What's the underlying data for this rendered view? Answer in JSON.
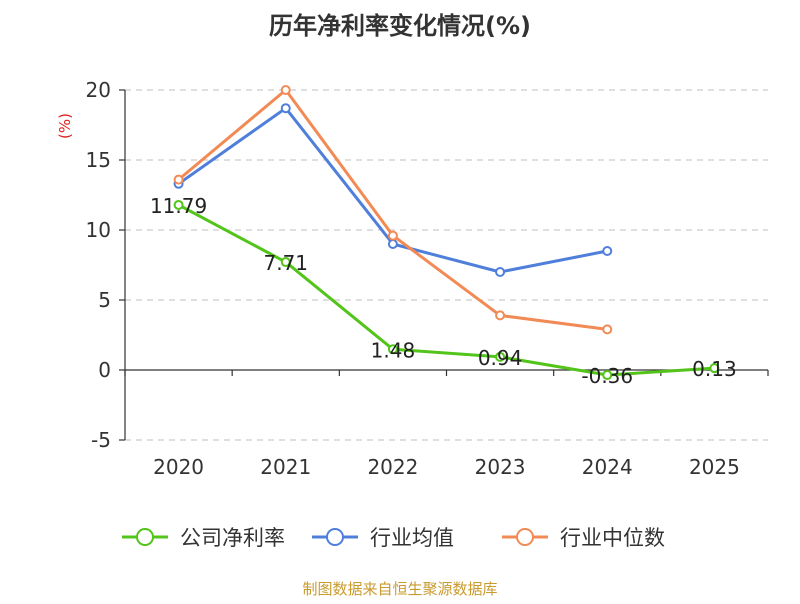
{
  "chart_data": {
    "type": "line",
    "title": "历年净利率变化情况(%)",
    "ylabel": "(%)",
    "xlabel": "",
    "categories": [
      "2020",
      "2021",
      "2022",
      "2023",
      "2024",
      "2025"
    ],
    "ylim": [
      -5,
      20
    ],
    "yticks": [
      "-5",
      "0",
      "5",
      "10",
      "15",
      "20"
    ],
    "grid": true,
    "legend_position": "bottom",
    "series": [
      {
        "name": "公司净利率",
        "color": "#52c41a",
        "values": [
          11.79,
          7.71,
          1.48,
          0.94,
          -0.36,
          0.13
        ],
        "labels": [
          "11.79",
          "7.71",
          "1.48",
          "0.94",
          "-0.36",
          "0.13"
        ]
      },
      {
        "name": "行业均值",
        "color": "#4f7fdb",
        "values": [
          13.3,
          18.7,
          9.0,
          7.0,
          8.5,
          null
        ]
      },
      {
        "name": "行业中位数",
        "color": "#f28a55",
        "values": [
          13.6,
          20.0,
          9.6,
          3.9,
          2.9,
          null
        ]
      }
    ],
    "source": "制图数据来自恒生聚源数据库"
  }
}
